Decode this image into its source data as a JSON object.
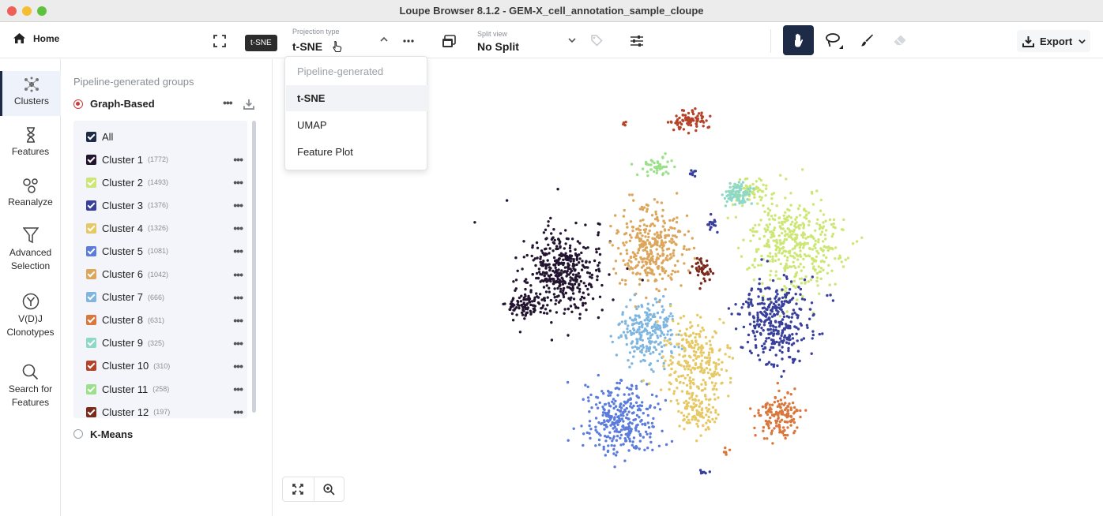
{
  "window": {
    "title": "Loupe Browser 8.1.2 - GEM-X_cell_annotation_sample_cloupe"
  },
  "toolbar": {
    "home_label": "Home",
    "projection": {
      "label": "Projection type",
      "value": "t-SNE",
      "tooltip": "t-SNE"
    },
    "split": {
      "label": "Split view",
      "value": "No Split"
    },
    "export_label": "Export"
  },
  "nav": {
    "clusters": "Clusters",
    "features": "Features",
    "reanalyze": "Reanalyze",
    "advanced_1": "Advanced",
    "advanced_2": "Selection",
    "vdj_1": "V(D)J",
    "vdj_2": "Clonotypes",
    "search_1": "Search for",
    "search_2": "Features"
  },
  "panel": {
    "title": "Pipeline-generated groups",
    "graph_based": "Graph-Based",
    "all_label": "All",
    "kmeans": "K-Means",
    "clusters": [
      {
        "name": "Cluster 1",
        "count": "(1772)",
        "color": "#231530"
      },
      {
        "name": "Cluster 2",
        "count": "(1493)",
        "color": "#cde776"
      },
      {
        "name": "Cluster 3",
        "count": "(1376)",
        "color": "#38409c"
      },
      {
        "name": "Cluster 4",
        "count": "(1326)",
        "color": "#e6c964"
      },
      {
        "name": "Cluster 5",
        "count": "(1081)",
        "color": "#5c7cdc"
      },
      {
        "name": "Cluster 6",
        "count": "(1042)",
        "color": "#dca65c"
      },
      {
        "name": "Cluster 7",
        "count": "(666)",
        "color": "#7fb6e0"
      },
      {
        "name": "Cluster 8",
        "count": "(631)",
        "color": "#d9773c"
      },
      {
        "name": "Cluster 9",
        "count": "(325)",
        "color": "#8ed9c6"
      },
      {
        "name": "Cluster 10",
        "count": "(310)",
        "color": "#b5432a"
      },
      {
        "name": "Cluster 11",
        "count": "(258)",
        "color": "#9be08a"
      },
      {
        "name": "Cluster 12",
        "count": "(197)",
        "color": "#7a2a1c"
      }
    ]
  },
  "dropdown": {
    "header": "Pipeline-generated",
    "items": [
      "t-SNE",
      "UMAP",
      "Feature Plot"
    ],
    "selected": "t-SNE"
  },
  "colors": {
    "accent": "#1d2b46",
    "graph_radio": "#cf3b3b"
  }
}
